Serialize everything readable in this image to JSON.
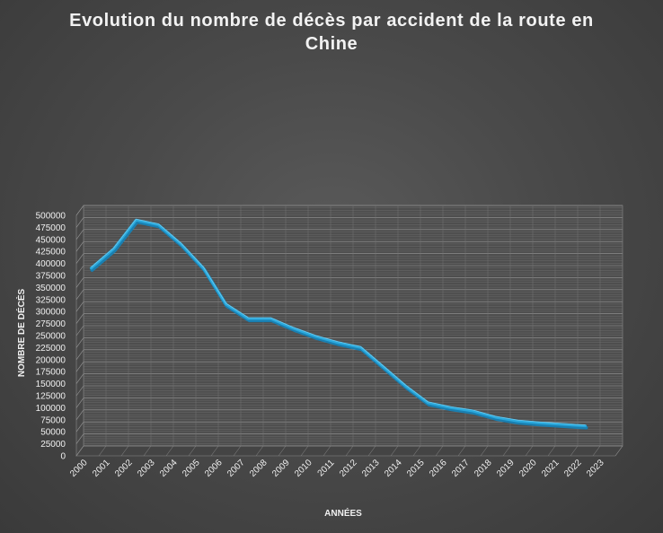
{
  "chart_data": {
    "type": "line",
    "title": "Evolution du nombre de décès par accident de la route en Chine",
    "xlabel": "ANNÉES",
    "ylabel": "NOMBRE DE DÉCÈS",
    "categories": [
      "2000",
      "2001",
      "2002",
      "2003",
      "2004",
      "2005",
      "2006",
      "2007",
      "2008",
      "2009",
      "2010",
      "2011",
      "2012",
      "2013",
      "2014",
      "2015",
      "2016",
      "2017",
      "2018",
      "2019",
      "2020",
      "2021",
      "2022",
      "2023"
    ],
    "series": [
      {
        "values": [
          380000,
          420000,
          480000,
          470000,
          430000,
          380000,
          305000,
          275000,
          275000,
          255000,
          238000,
          225000,
          215000,
          175000,
          135000,
          100000,
          90000,
          83000,
          70000,
          62000,
          58000,
          55000,
          52000,
          null
        ]
      }
    ],
    "yticks": [
      0,
      25000,
      50000,
      75000,
      100000,
      125000,
      150000,
      175000,
      200000,
      225000,
      250000,
      275000,
      300000,
      325000,
      350000,
      375000,
      400000,
      425000,
      450000,
      475000,
      500000
    ],
    "ylim": [
      0,
      500000
    ],
    "grid": true,
    "legend": "none",
    "colors": {
      "line": "#29a8dc",
      "line_shadow": "#1a7fb0",
      "grid": "#8a8a8a",
      "background": "#4a4a4a",
      "text": "#f0f0f0"
    }
  }
}
